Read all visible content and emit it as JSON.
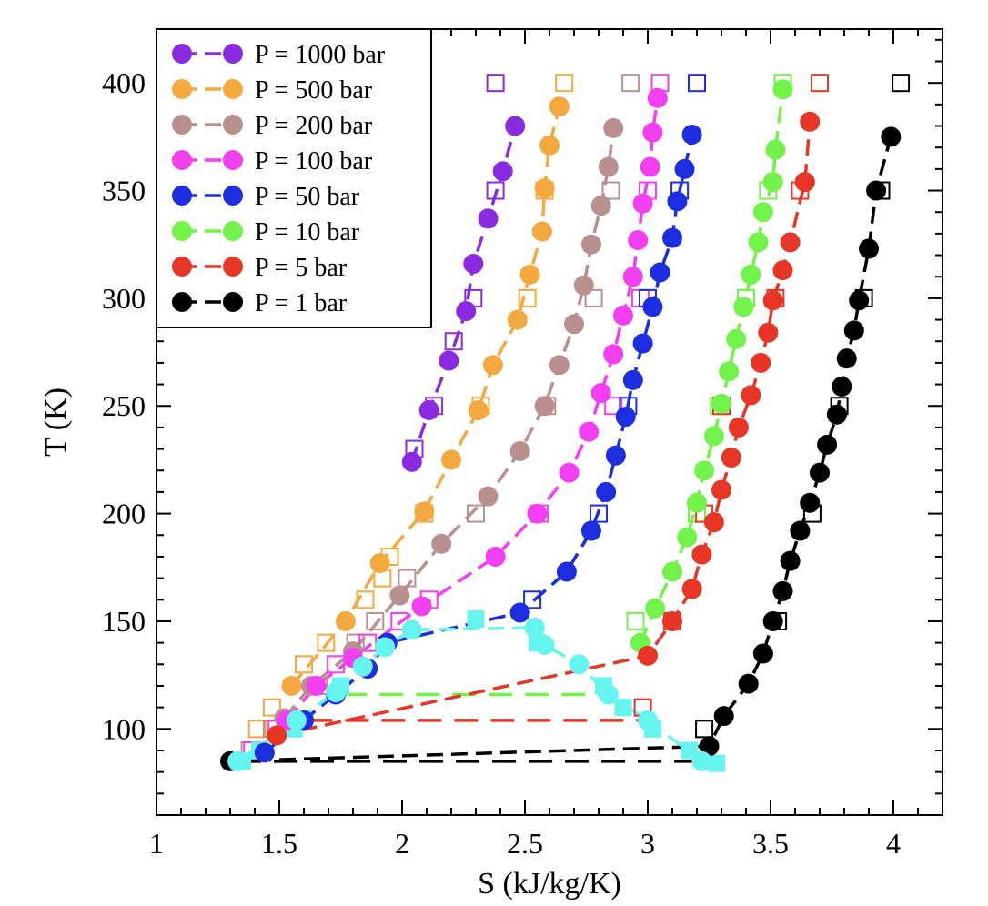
{
  "chart_data": {
    "type": "scatter",
    "xlabel": "S (kJ/kg/K)",
    "ylabel": "T (K)",
    "xlim": [
      1,
      4.2
    ],
    "ylim": [
      60,
      425
    ],
    "xticks": [
      1,
      1.5,
      2,
      2.5,
      3,
      3.5,
      4
    ],
    "xtick_labels": [
      "1",
      "1.5",
      "2",
      "2.5",
      "3",
      "3.5",
      "4"
    ],
    "yticks": [
      100,
      150,
      200,
      250,
      300,
      350,
      400
    ],
    "ytick_labels": [
      "100",
      "150",
      "200",
      "250",
      "300",
      "350",
      "400"
    ],
    "grid": false,
    "legend_position": "top-left",
    "series": [
      {
        "name": "P = 1000 bar",
        "color": "#8a2be2",
        "points": [
          [
            2.04,
            224
          ],
          [
            2.11,
            248
          ],
          [
            2.19,
            271
          ],
          [
            2.26,
            294
          ],
          [
            2.29,
            316
          ],
          [
            2.35,
            337
          ],
          [
            2.41,
            359
          ],
          [
            2.46,
            380
          ]
        ],
        "ref_points": [
          [
            2.05,
            230
          ],
          [
            2.13,
            250
          ],
          [
            2.21,
            280
          ],
          [
            2.29,
            300
          ],
          [
            2.38,
            350
          ],
          [
            2.38,
            400
          ]
        ]
      },
      {
        "name": "P = 500 bar",
        "color": "#f4a840",
        "points": [
          [
            1.55,
            120
          ],
          [
            1.77,
            150
          ],
          [
            1.91,
            177
          ],
          [
            2.09,
            201
          ],
          [
            2.2,
            225
          ],
          [
            2.31,
            248
          ],
          [
            2.37,
            269
          ],
          [
            2.47,
            290
          ],
          [
            2.52,
            311
          ],
          [
            2.57,
            331
          ],
          [
            2.58,
            351
          ],
          [
            2.6,
            371
          ],
          [
            2.64,
            389
          ]
        ],
        "ref_points": [
          [
            1.41,
            100
          ],
          [
            1.47,
            110
          ],
          [
            1.6,
            130
          ],
          [
            1.69,
            140
          ],
          [
            1.85,
            160
          ],
          [
            1.92,
            170
          ],
          [
            1.95,
            180
          ],
          [
            2.09,
            200
          ],
          [
            2.32,
            250
          ],
          [
            2.51,
            300
          ],
          [
            2.58,
            350
          ],
          [
            2.66,
            400
          ]
        ]
      },
      {
        "name": "P = 200 bar",
        "color": "#b8918f",
        "points": [
          [
            1.52,
            105
          ],
          [
            1.63,
            120
          ],
          [
            1.8,
            136
          ],
          [
            1.99,
            162
          ],
          [
            2.16,
            186
          ],
          [
            2.35,
            208
          ],
          [
            2.48,
            229
          ],
          [
            2.58,
            250
          ],
          [
            2.64,
            269
          ],
          [
            2.7,
            288
          ],
          [
            2.74,
            306
          ],
          [
            2.77,
            325
          ],
          [
            2.81,
            343
          ],
          [
            2.84,
            361
          ],
          [
            2.86,
            379
          ]
        ],
        "ref_points": [
          [
            1.38,
            90
          ],
          [
            1.47,
            100
          ],
          [
            1.66,
            120
          ],
          [
            1.81,
            140
          ],
          [
            1.89,
            150
          ],
          [
            2.02,
            170
          ],
          [
            2.3,
            200
          ],
          [
            2.59,
            250
          ],
          [
            2.78,
            300
          ],
          [
            2.85,
            350
          ],
          [
            2.93,
            400
          ]
        ]
      },
      {
        "name": "P = 100 bar",
        "color": "#f13ff1",
        "points": [
          [
            1.53,
            104
          ],
          [
            1.65,
            120
          ],
          [
            1.8,
            133
          ],
          [
            2.08,
            157
          ],
          [
            2.38,
            180
          ],
          [
            2.55,
            200
          ],
          [
            2.68,
            219
          ],
          [
            2.76,
            238
          ],
          [
            2.81,
            256
          ],
          [
            2.86,
            274
          ],
          [
            2.9,
            292
          ],
          [
            2.94,
            310
          ],
          [
            2.96,
            327
          ],
          [
            2.98,
            344
          ],
          [
            3.01,
            361
          ],
          [
            3.02,
            377
          ],
          [
            3.04,
            393
          ]
        ],
        "ref_points": [
          [
            1.39,
            90
          ],
          [
            1.49,
            100
          ],
          [
            1.73,
            130
          ],
          [
            1.86,
            140
          ],
          [
            1.99,
            150
          ],
          [
            2.11,
            160
          ],
          [
            2.56,
            200
          ],
          [
            2.86,
            250
          ],
          [
            2.97,
            300
          ],
          [
            3.0,
            350
          ],
          [
            3.05,
            400
          ]
        ]
      },
      {
        "name": "P = 50 bar",
        "color": "#1d2ee0",
        "points": [
          [
            1.44,
            89
          ],
          [
            1.6,
            104
          ],
          [
            1.73,
            116
          ],
          [
            1.86,
            128
          ],
          [
            1.94,
            140
          ],
          [
            2.48,
            154
          ],
          [
            2.67,
            173
          ],
          [
            2.77,
            192
          ],
          [
            2.83,
            210
          ],
          [
            2.87,
            227
          ],
          [
            2.91,
            245
          ],
          [
            2.94,
            262
          ],
          [
            2.98,
            279
          ],
          [
            3.02,
            296
          ],
          [
            3.05,
            312
          ],
          [
            3.1,
            328
          ],
          [
            3.12,
            345
          ],
          [
            3.15,
            360
          ],
          [
            3.18,
            376
          ]
        ],
        "ref_points": [
          [
            2.53,
            160
          ],
          [
            2.8,
            200
          ],
          [
            2.92,
            250
          ],
          [
            3.0,
            300
          ],
          [
            3.13,
            350
          ],
          [
            3.2,
            400
          ]
        ]
      },
      {
        "name": "P = 10 bar",
        "color": "#72f24b",
        "points": [
          [
            2.97,
            140
          ],
          [
            3.03,
            156
          ],
          [
            3.1,
            173
          ],
          [
            3.16,
            189
          ],
          [
            3.2,
            205
          ],
          [
            3.23,
            220
          ],
          [
            3.27,
            236
          ],
          [
            3.3,
            251
          ],
          [
            3.33,
            266
          ],
          [
            3.36,
            281
          ],
          [
            3.39,
            296
          ],
          [
            3.42,
            311
          ],
          [
            3.45,
            326
          ],
          [
            3.47,
            340
          ],
          [
            3.51,
            354
          ],
          [
            3.52,
            369
          ],
          [
            3.55,
            397
          ]
        ],
        "ref_points": [
          [
            2.95,
            150
          ],
          [
            3.2,
            200
          ],
          [
            3.29,
            250
          ],
          [
            3.4,
            300
          ],
          [
            3.49,
            350
          ],
          [
            3.55,
            400
          ]
        ]
      },
      {
        "name": "P = 5 bar",
        "color": "#e73626",
        "points": [
          [
            1.49,
            97
          ],
          [
            3.0,
            134
          ],
          [
            3.1,
            150
          ],
          [
            3.18,
            165
          ],
          [
            3.22,
            181
          ],
          [
            3.27,
            196
          ],
          [
            3.3,
            211
          ],
          [
            3.34,
            226
          ],
          [
            3.37,
            240
          ],
          [
            3.42,
            255
          ],
          [
            3.46,
            270
          ],
          [
            3.49,
            284
          ],
          [
            3.51,
            299
          ],
          [
            3.55,
            313
          ],
          [
            3.58,
            326
          ],
          [
            3.64,
            354
          ],
          [
            3.66,
            382
          ]
        ],
        "ref_points": [
          [
            2.98,
            110
          ],
          [
            3.1,
            150
          ],
          [
            3.23,
            200
          ],
          [
            3.3,
            250
          ],
          [
            3.52,
            300
          ],
          [
            3.62,
            350
          ],
          [
            3.7,
            400
          ]
        ]
      },
      {
        "name": "P = 1 bar",
        "color": "#000000",
        "points": [
          [
            1.3,
            85
          ],
          [
            3.25,
            92
          ],
          [
            3.31,
            106
          ],
          [
            3.41,
            121
          ],
          [
            3.47,
            135
          ],
          [
            3.51,
            150
          ],
          [
            3.55,
            164
          ],
          [
            3.58,
            178
          ],
          [
            3.62,
            192
          ],
          [
            3.66,
            205
          ],
          [
            3.7,
            219
          ],
          [
            3.73,
            232
          ],
          [
            3.77,
            246
          ],
          [
            3.79,
            259
          ],
          [
            3.81,
            272
          ],
          [
            3.84,
            285
          ],
          [
            3.86,
            299
          ],
          [
            3.9,
            323
          ],
          [
            3.93,
            350
          ],
          [
            3.99,
            375
          ]
        ],
        "ref_points": [
          [
            3.23,
            100
          ],
          [
            3.53,
            150
          ],
          [
            3.67,
            200
          ],
          [
            3.78,
            250
          ],
          [
            3.88,
            300
          ],
          [
            3.95,
            350
          ],
          [
            4.03,
            400
          ]
        ]
      }
    ],
    "coexistence": {
      "color": "#66f5ee",
      "points": [
        [
          1.33,
          85
        ],
        [
          1.57,
          104
        ],
        [
          1.73,
          117
        ],
        [
          1.84,
          129
        ],
        [
          1.93,
          138
        ],
        [
          2.04,
          146
        ],
        [
          2.54,
          147
        ],
        [
          2.58,
          139
        ],
        [
          2.72,
          130
        ],
        [
          2.84,
          116
        ],
        [
          3.0,
          104
        ],
        [
          3.22,
          85
        ]
      ],
      "squares": [
        [
          1.35,
          85
        ],
        [
          1.42,
          90
        ],
        [
          1.56,
          100
        ],
        [
          1.75,
          120
        ],
        [
          2.3,
          151
        ],
        [
          2.55,
          140
        ],
        [
          2.82,
          120
        ],
        [
          2.9,
          110
        ],
        [
          3.02,
          100
        ],
        [
          3.17,
          90
        ],
        [
          3.28,
          84
        ]
      ]
    },
    "isobar_lines": [
      {
        "color": "#000000",
        "x1": 1.33,
        "x2": 3.22,
        "y": 85
      },
      {
        "color": "#e73626",
        "x1": 1.62,
        "x2": 2.98,
        "y": 104
      },
      {
        "color": "#72f24b",
        "x1": 1.76,
        "x2": 2.84,
        "y": 116
      }
    ]
  }
}
